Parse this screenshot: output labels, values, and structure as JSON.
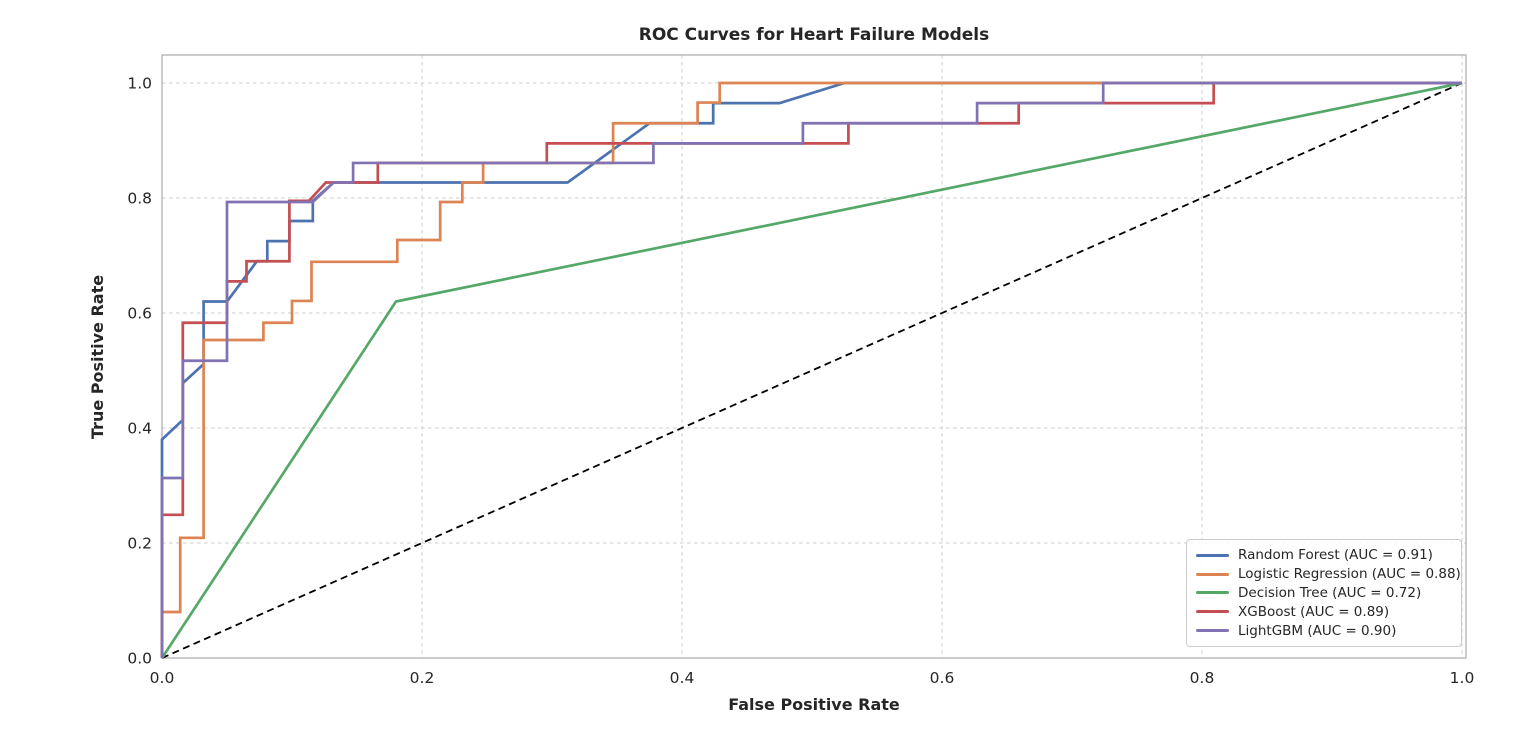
{
  "figure": {
    "title": "ROC Curves for Heart Failure Models",
    "xlabel": "False Positive Rate",
    "ylabel": "True Positive Rate"
  },
  "chart_data": {
    "type": "line",
    "title": "ROC Curves for Heart Failure Models",
    "xlabel": "False Positive Rate",
    "ylabel": "True Positive Rate",
    "xlim": [
      0.0,
      1.0
    ],
    "ylim": [
      0.0,
      1.05
    ],
    "x_ticks": [
      0.0,
      0.2,
      0.4,
      0.6,
      0.8,
      1.0
    ],
    "y_ticks": [
      0.0,
      0.2,
      0.4,
      0.6,
      0.8,
      1.0
    ],
    "x_tick_labels": [
      "0.0",
      "0.2",
      "0.4",
      "0.6",
      "0.8",
      "1.0"
    ],
    "y_tick_labels": [
      "0.0",
      "0.2",
      "0.4",
      "0.6",
      "0.8",
      "1.0"
    ],
    "grid": "dashed",
    "legend_position": "lower right",
    "style": {
      "grid_color": "#cccccc",
      "spine_color": "#b0b0b0",
      "text_color": "#262626",
      "background": "#ffffff",
      "reference_color": "#000000"
    },
    "reference_line": {
      "name": "chance-diagonal",
      "style": "dashed",
      "color": "#000000",
      "points": [
        [
          0,
          0
        ],
        [
          1,
          1
        ]
      ]
    },
    "series": [
      {
        "name": "Random Forest",
        "auc": 0.91,
        "legend_label": "Random Forest (AUC = 0.91)",
        "color": "#4C72B0",
        "points": [
          [
            0,
            0
          ],
          [
            0,
            0.38
          ],
          [
            0.016,
            0.414
          ],
          [
            0.016,
            0.478
          ],
          [
            0.032,
            0.511
          ],
          [
            0.032,
            0.62
          ],
          [
            0.05,
            0.62
          ],
          [
            0.073,
            0.69
          ],
          [
            0.081,
            0.69
          ],
          [
            0.081,
            0.725
          ],
          [
            0.098,
            0.725
          ],
          [
            0.098,
            0.76
          ],
          [
            0.116,
            0.76
          ],
          [
            0.116,
            0.795
          ],
          [
            0.132,
            0.827
          ],
          [
            0.312,
            0.827
          ],
          [
            0.375,
            0.93
          ],
          [
            0.424,
            0.93
          ],
          [
            0.424,
            0.965
          ],
          [
            0.475,
            0.965
          ],
          [
            0.525,
            1.0
          ],
          [
            1,
            1
          ]
        ]
      },
      {
        "name": "Logistic Regression",
        "auc": 0.88,
        "legend_label": "Logistic Regression (AUC = 0.88)",
        "color": "#DD8452",
        "points": [
          [
            0,
            0
          ],
          [
            0,
            0.08
          ],
          [
            0.014,
            0.08
          ],
          [
            0.014,
            0.209
          ],
          [
            0.032,
            0.209
          ],
          [
            0.032,
            0.553
          ],
          [
            0.078,
            0.553
          ],
          [
            0.078,
            0.583
          ],
          [
            0.1,
            0.583
          ],
          [
            0.1,
            0.621
          ],
          [
            0.115,
            0.621
          ],
          [
            0.115,
            0.689
          ],
          [
            0.181,
            0.689
          ],
          [
            0.181,
            0.727
          ],
          [
            0.214,
            0.727
          ],
          [
            0.214,
            0.793
          ],
          [
            0.231,
            0.793
          ],
          [
            0.231,
            0.827
          ],
          [
            0.247,
            0.827
          ],
          [
            0.247,
            0.861
          ],
          [
            0.347,
            0.861
          ],
          [
            0.347,
            0.93
          ],
          [
            0.412,
            0.93
          ],
          [
            0.412,
            0.966
          ],
          [
            0.429,
            0.966
          ],
          [
            0.429,
            1.0
          ],
          [
            1,
            1
          ]
        ]
      },
      {
        "name": "Decision Tree",
        "auc": 0.72,
        "legend_label": "Decision Tree (AUC = 0.72)",
        "color": "#55A868",
        "points": [
          [
            0,
            0
          ],
          [
            0.18,
            0.62
          ],
          [
            1,
            1
          ]
        ]
      },
      {
        "name": "XGBoost",
        "auc": 0.89,
        "legend_label": "XGBoost (AUC = 0.89)",
        "color": "#C44E52",
        "points": [
          [
            0,
            0
          ],
          [
            0,
            0.249
          ],
          [
            0.016,
            0.249
          ],
          [
            0.016,
            0.583
          ],
          [
            0.05,
            0.583
          ],
          [
            0.05,
            0.655
          ],
          [
            0.065,
            0.655
          ],
          [
            0.065,
            0.69
          ],
          [
            0.098,
            0.69
          ],
          [
            0.098,
            0.795
          ],
          [
            0.113,
            0.795
          ],
          [
            0.126,
            0.827
          ],
          [
            0.166,
            0.827
          ],
          [
            0.166,
            0.861
          ],
          [
            0.296,
            0.861
          ],
          [
            0.296,
            0.895
          ],
          [
            0.528,
            0.895
          ],
          [
            0.528,
            0.93
          ],
          [
            0.659,
            0.93
          ],
          [
            0.659,
            0.965
          ],
          [
            0.809,
            0.965
          ],
          [
            0.809,
            1.0
          ],
          [
            1,
            1
          ]
        ]
      },
      {
        "name": "LightGBM",
        "auc": 0.9,
        "legend_label": "LightGBM (AUC = 0.90)",
        "color": "#8172B3",
        "points": [
          [
            0,
            0
          ],
          [
            0,
            0.313
          ],
          [
            0.016,
            0.313
          ],
          [
            0.016,
            0.517
          ],
          [
            0.05,
            0.517
          ],
          [
            0.05,
            0.793
          ],
          [
            0.116,
            0.793
          ],
          [
            0.132,
            0.827
          ],
          [
            0.147,
            0.827
          ],
          [
            0.147,
            0.861
          ],
          [
            0.378,
            0.861
          ],
          [
            0.378,
            0.895
          ],
          [
            0.493,
            0.895
          ],
          [
            0.493,
            0.93
          ],
          [
            0.627,
            0.93
          ],
          [
            0.627,
            0.965
          ],
          [
            0.724,
            0.965
          ],
          [
            0.724,
            1.0
          ],
          [
            1,
            1
          ]
        ]
      }
    ]
  }
}
